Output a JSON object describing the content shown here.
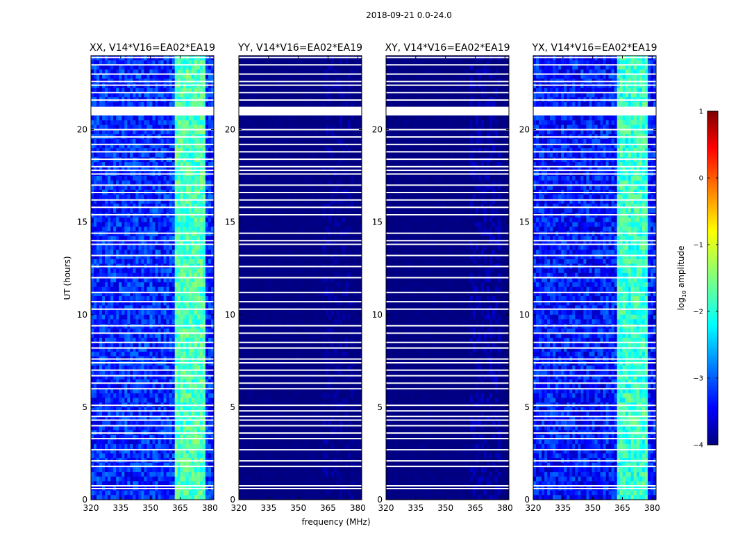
{
  "chart_data": {
    "type": "heatmap",
    "suptitle": "2018-09-21 0.0-24.0",
    "xlabel": "frequency (MHz)",
    "ylabel": "UT (hours)",
    "xlim": [
      320,
      382
    ],
    "ylim": [
      0,
      24
    ],
    "xticks": [
      "320",
      "335",
      "350",
      "365",
      "380"
    ],
    "xtick_values": [
      320,
      335,
      350,
      365,
      380
    ],
    "yticks": [
      "0",
      "5",
      "10",
      "15",
      "20"
    ],
    "ytick_values": [
      0,
      5,
      10,
      15,
      20
    ],
    "colorbar": {
      "label": "log10 amplitude",
      "range": [
        -4,
        1
      ],
      "ticks": [
        "−4",
        "−3",
        "−2",
        "−1",
        "0",
        "1"
      ],
      "tick_values": [
        -4,
        -3,
        -2,
        -1,
        0,
        1
      ],
      "colormap": "jet"
    },
    "panels": [
      {
        "title": "XX, V14*V16=EA02*EA19",
        "polarization": "XX",
        "base_level": -3.2,
        "rfi_level": -1.7
      },
      {
        "title": "YY, V14*V16=EA02*EA19",
        "polarization": "YY",
        "base_level": -4.0,
        "rfi_level": -4.0
      },
      {
        "title": "XY, V14*V16=EA02*EA19",
        "polarization": "XY",
        "base_level": -4.0,
        "rfi_level": -3.9
      },
      {
        "title": "YX, V14*V16=EA02*EA19",
        "polarization": "YX",
        "base_level": -3.3,
        "rfi_level": -1.8
      }
    ],
    "rfi_band_mhz": [
      362,
      378
    ],
    "flagged_hours": [
      0.6,
      0.75,
      1.8,
      2.1,
      2.7,
      3.3,
      3.6,
      4.0,
      4.3,
      4.5,
      4.8,
      5.1,
      6.0,
      6.3,
      6.7,
      7.0,
      7.4,
      7.6,
      8.2,
      8.5,
      9.0,
      9.4,
      10.3,
      10.7,
      11.2,
      12.0,
      12.6,
      13.2,
      13.8,
      14.0,
      14.4,
      15.4,
      15.8,
      16.2,
      16.6,
      17.0,
      17.6,
      17.8,
      18.0,
      18.4,
      18.8,
      19.2,
      19.6,
      20.0,
      20.8,
      21.2,
      21.6,
      22.0,
      22.4,
      22.6,
      23.0,
      23.5,
      23.9
    ],
    "gap_hours": [
      [
        20.8,
        21.2
      ]
    ]
  }
}
